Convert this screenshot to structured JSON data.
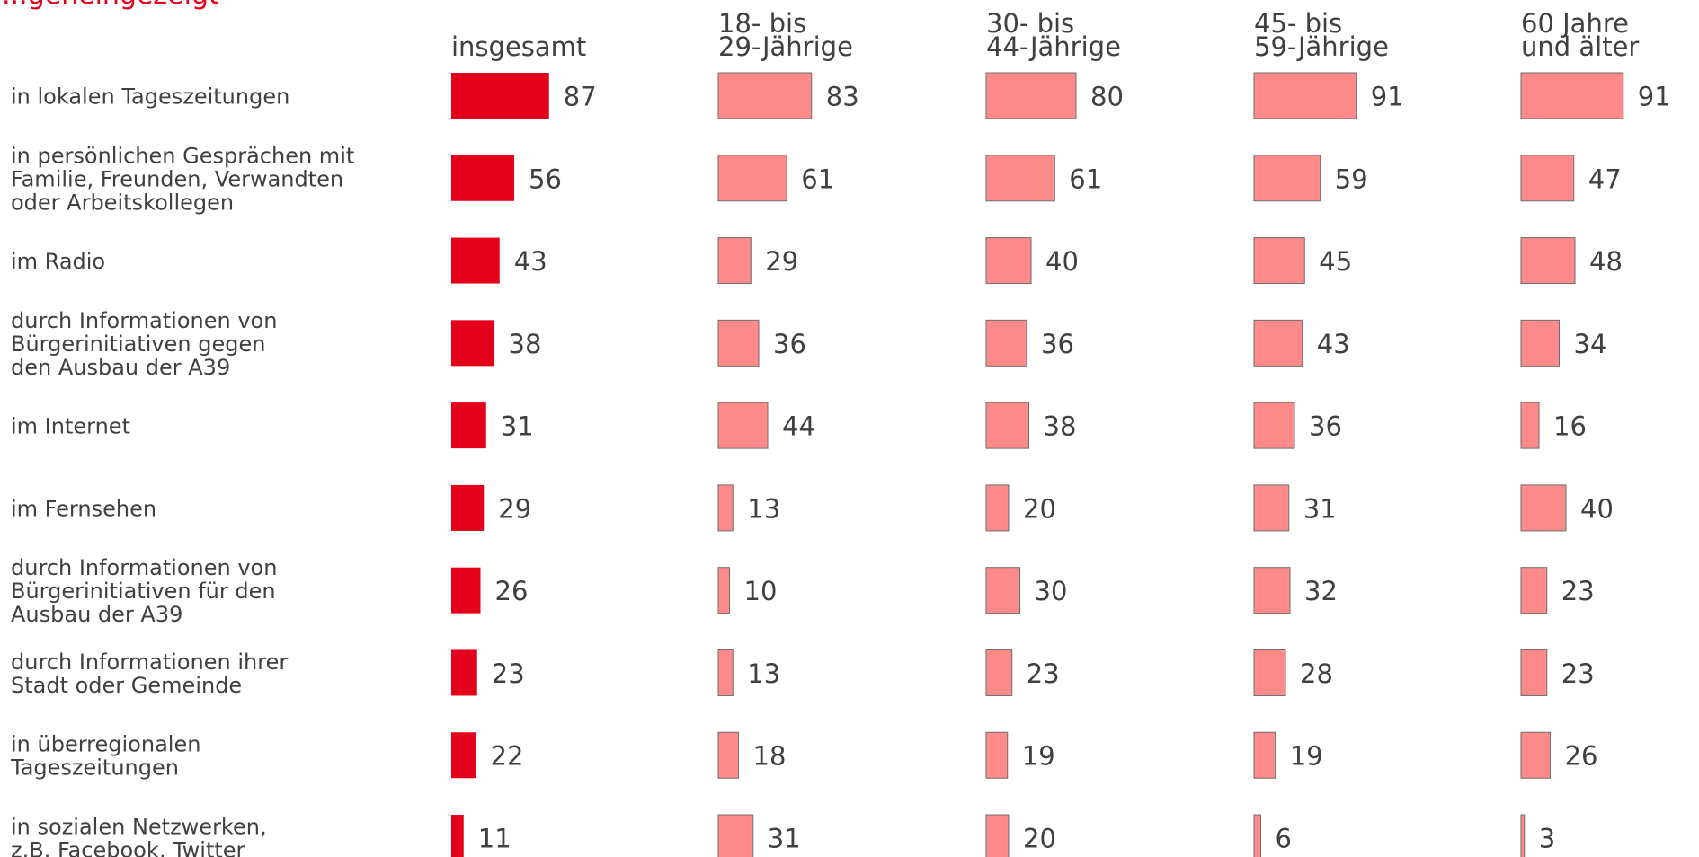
{
  "title": "...geneingezeigt",
  "chart_data": {
    "type": "bar",
    "categories": [
      [
        "in lokalen Tageszeitungen"
      ],
      [
        "in persönlichen Gesprächen mit",
        "Familie, Freunden, Verwandten",
        "oder Arbeitskollegen"
      ],
      [
        "im Radio"
      ],
      [
        "durch Informationen von",
        "Bürgerinitiativen gegen",
        "den Ausbau der A39"
      ],
      [
        "im Internet"
      ],
      [
        "im Fernsehen"
      ],
      [
        "durch Informationen von",
        "Bürgerinitiativen für den",
        "Ausbau der A39"
      ],
      [
        "durch Informationen ihrer",
        "Stadt oder Gemeinde"
      ],
      [
        "in überregionalen",
        "Tageszeitungen"
      ],
      [
        "in sozialen Netzwerken,",
        "z.B. Facebook, Twitter"
      ]
    ],
    "series": [
      {
        "name": [
          "insgesamt"
        ],
        "color": "#e2001a",
        "values": [
          87,
          56,
          43,
          38,
          31,
          29,
          26,
          23,
          22,
          11
        ]
      },
      {
        "name": [
          "18- bis",
          "29-Jährige"
        ],
        "color": "#ff8a8a",
        "values": [
          83,
          61,
          29,
          36,
          44,
          13,
          10,
          13,
          18,
          31
        ]
      },
      {
        "name": [
          "30- bis",
          "44-Jährige"
        ],
        "color": "#ff8a8a",
        "values": [
          80,
          61,
          40,
          36,
          38,
          20,
          30,
          23,
          19,
          20
        ]
      },
      {
        "name": [
          "45- bis",
          "59-Jährige"
        ],
        "color": "#ff8a8a",
        "values": [
          91,
          59,
          45,
          43,
          36,
          31,
          32,
          28,
          19,
          6
        ]
      },
      {
        "name": [
          "60 Jahre",
          "und älter"
        ],
        "color": "#ff8a8a",
        "values": [
          91,
          47,
          48,
          34,
          16,
          40,
          23,
          23,
          26,
          3
        ]
      }
    ],
    "xlim": [
      0,
      100
    ],
    "grid": false
  }
}
